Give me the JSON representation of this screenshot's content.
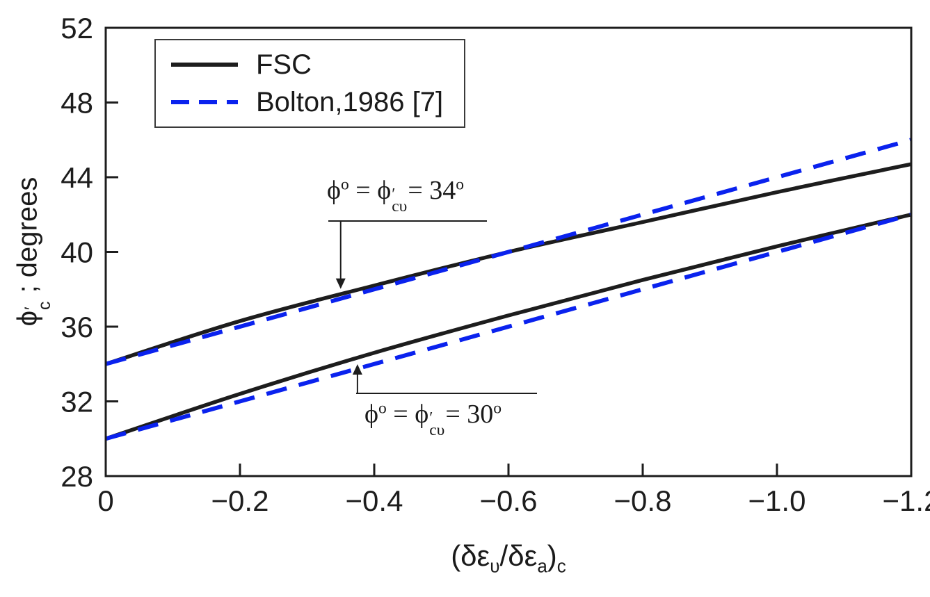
{
  "figure": {
    "background": "#ffffff"
  },
  "legend": {
    "entries": [
      {
        "label": "FSC",
        "color": "#1d1d1d",
        "style": "solid"
      },
      {
        "label": "Bolton,1986 [7]",
        "color": "#0a22ee",
        "style": "dashed"
      }
    ]
  },
  "chart_data": {
    "type": "line",
    "title": "",
    "xlabel_tokens": [
      {
        "t": "(δε"
      },
      {
        "sub": "υ"
      },
      {
        "t": "/δε"
      },
      {
        "sub": "a"
      },
      {
        "t": ")"
      },
      {
        "sub": "c"
      }
    ],
    "ylabel_tokens": [
      {
        "t": "ϕ"
      },
      {
        "stack": [
          "′",
          "c"
        ]
      },
      {
        "t": " ; degrees"
      }
    ],
    "xlim": [
      0,
      -1.2
    ],
    "ylim": [
      28,
      52
    ],
    "x_values": [
      0,
      -0.2,
      -0.4,
      -0.6,
      -0.8,
      -1.0,
      -1.2
    ],
    "x_ticks": [
      "0",
      "−0.2",
      "−0.4",
      "−0.6",
      "−0.8",
      "−1.0",
      "−1.2"
    ],
    "y_ticks": [
      "28",
      "32",
      "36",
      "40",
      "44",
      "48",
      "52"
    ],
    "grid": "off",
    "legend_position": "top-left",
    "series": [
      {
        "name": "FSC (phi_cv = 34 deg)",
        "color": "#1d1d1d",
        "style": "solid",
        "values": [
          34.0,
          36.3,
          38.2,
          40.0,
          41.6,
          43.2,
          44.7
        ]
      },
      {
        "name": "Bolton 1986 (phi_cv = 34 deg)",
        "color": "#0a22ee",
        "style": "dashed",
        "values": [
          34.0,
          36.0,
          38.0,
          40.0,
          42.0,
          44.0,
          46.0
        ]
      },
      {
        "name": "FSC (phi_cv = 30 deg)",
        "color": "#1d1d1d",
        "style": "solid",
        "values": [
          30.0,
          32.4,
          34.6,
          36.6,
          38.5,
          40.3,
          42.0
        ]
      },
      {
        "name": "Bolton 1986 (phi_cv = 30 deg)",
        "color": "#0a22ee",
        "style": "dashed",
        "values": [
          30.0,
          32.0,
          34.0,
          36.0,
          38.0,
          40.0,
          42.0
        ]
      }
    ],
    "annotations": [
      {
        "tokens": [
          {
            "t": "ϕ"
          },
          {
            "sup": "o"
          },
          {
            "t": " = ϕ"
          },
          {
            "stack": [
              "′",
              "cυ"
            ]
          },
          {
            "t": "= 34"
          },
          {
            "sup": "o"
          }
        ],
        "target_series": 0,
        "target_x": -0.35,
        "direction": "down"
      },
      {
        "tokens": [
          {
            "t": "ϕ"
          },
          {
            "sup": "o"
          },
          {
            "t": " = ϕ"
          },
          {
            "stack": [
              "′",
              "cυ"
            ]
          },
          {
            "t": "= 30"
          },
          {
            "sup": "o"
          }
        ],
        "target_series": 2,
        "target_x": -0.375,
        "direction": "up"
      }
    ]
  }
}
